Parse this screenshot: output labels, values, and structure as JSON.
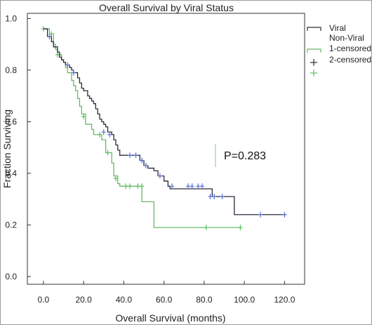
{
  "chart_data": {
    "type": "line",
    "subtype": "kaplan-meier-step",
    "title": "Overall Survival by Viral Status",
    "xlabel": "Overall Survival (months)",
    "ylabel": "Fraction Surviving",
    "xlim": [
      -8,
      130
    ],
    "ylim": [
      -0.03,
      1.02
    ],
    "x_ticks": [
      0,
      20,
      40,
      60,
      80,
      100,
      120
    ],
    "x_tick_labels": [
      "0.0",
      "20.0",
      "40.0",
      "60.0",
      "80.0",
      "100.0",
      "120.0"
    ],
    "y_ticks": [
      0,
      0.2,
      0.4,
      0.6,
      0.8,
      1.0
    ],
    "y_tick_labels": [
      "0.0",
      "0.2",
      "0.4",
      "0.6",
      "0.8",
      "1.0"
    ],
    "grid": false,
    "legend_position": "top-right outside",
    "legend": [
      "Viral",
      "Non-Viral",
      "1-censored",
      "2-censored"
    ],
    "annotation": "P=0.283",
    "colors": {
      "viral": "#2b2b3a",
      "non_viral": "#6ab86a",
      "censor_viral": "#5a6fd6",
      "censor_non_viral": "#5cc05c"
    },
    "series": [
      {
        "name": "Viral",
        "steps": [
          [
            0,
            0.96
          ],
          [
            2,
            0.93
          ],
          [
            4,
            0.91
          ],
          [
            5,
            0.89
          ],
          [
            7,
            0.87
          ],
          [
            8,
            0.85
          ],
          [
            9,
            0.84
          ],
          [
            10,
            0.83
          ],
          [
            11,
            0.82
          ],
          [
            13,
            0.81
          ],
          [
            14,
            0.8
          ],
          [
            15,
            0.79
          ],
          [
            17,
            0.77
          ],
          [
            18,
            0.75
          ],
          [
            19,
            0.73
          ],
          [
            20,
            0.72
          ],
          [
            22,
            0.7
          ],
          [
            23,
            0.69
          ],
          [
            24,
            0.68
          ],
          [
            25,
            0.67
          ],
          [
            26,
            0.65
          ],
          [
            27,
            0.63
          ],
          [
            28,
            0.61
          ],
          [
            29,
            0.6
          ],
          [
            30,
            0.59
          ],
          [
            31,
            0.58
          ],
          [
            32,
            0.56
          ],
          [
            34,
            0.55
          ],
          [
            35,
            0.53
          ],
          [
            36,
            0.51
          ],
          [
            37,
            0.49
          ],
          [
            38,
            0.47
          ],
          [
            48,
            0.45
          ],
          [
            50,
            0.43
          ],
          [
            52,
            0.42
          ],
          [
            55,
            0.41
          ],
          [
            57,
            0.39
          ],
          [
            60,
            0.37
          ],
          [
            62,
            0.35
          ],
          [
            63,
            0.34
          ],
          [
            84,
            0.31
          ],
          [
            95,
            0.24
          ],
          [
            121,
            0.24
          ]
        ],
        "censored": [
          [
            3,
            0.93
          ],
          [
            12,
            0.82
          ],
          [
            15,
            0.79
          ],
          [
            30,
            0.56
          ],
          [
            33,
            0.55
          ],
          [
            43,
            0.47
          ],
          [
            46,
            0.47
          ],
          [
            49,
            0.45
          ],
          [
            51,
            0.43
          ],
          [
            58,
            0.39
          ],
          [
            64,
            0.35
          ],
          [
            72,
            0.35
          ],
          [
            74,
            0.35
          ],
          [
            77,
            0.35
          ],
          [
            79,
            0.35
          ],
          [
            83,
            0.31
          ],
          [
            85,
            0.31
          ],
          [
            89,
            0.31
          ],
          [
            108,
            0.24
          ],
          [
            120,
            0.24
          ]
        ]
      },
      {
        "name": "Non-Viral",
        "steps": [
          [
            0,
            0.96
          ],
          [
            3,
            0.94
          ],
          [
            5,
            0.9
          ],
          [
            6,
            0.88
          ],
          [
            7,
            0.86
          ],
          [
            9,
            0.84
          ],
          [
            10,
            0.83
          ],
          [
            11,
            0.81
          ],
          [
            12,
            0.79
          ],
          [
            14,
            0.76
          ],
          [
            15,
            0.74
          ],
          [
            16,
            0.72
          ],
          [
            17,
            0.69
          ],
          [
            18,
            0.66
          ],
          [
            19,
            0.63
          ],
          [
            21,
            0.59
          ],
          [
            24,
            0.57
          ],
          [
            25,
            0.55
          ],
          [
            29,
            0.53
          ],
          [
            31,
            0.48
          ],
          [
            34,
            0.44
          ],
          [
            35,
            0.39
          ],
          [
            37,
            0.36
          ],
          [
            38,
            0.35
          ],
          [
            49,
            0.29
          ],
          [
            55,
            0.19
          ],
          [
            99,
            0.19
          ]
        ],
        "censored": [
          [
            0,
            0.96
          ],
          [
            4,
            0.94
          ],
          [
            7,
            0.86
          ],
          [
            8,
            0.86
          ],
          [
            20,
            0.62
          ],
          [
            28,
            0.55
          ],
          [
            32,
            0.48
          ],
          [
            36,
            0.38
          ],
          [
            41,
            0.35
          ],
          [
            43,
            0.35
          ],
          [
            47,
            0.35
          ],
          [
            49,
            0.35
          ],
          [
            81,
            0.19
          ],
          [
            98,
            0.19
          ]
        ]
      }
    ]
  }
}
